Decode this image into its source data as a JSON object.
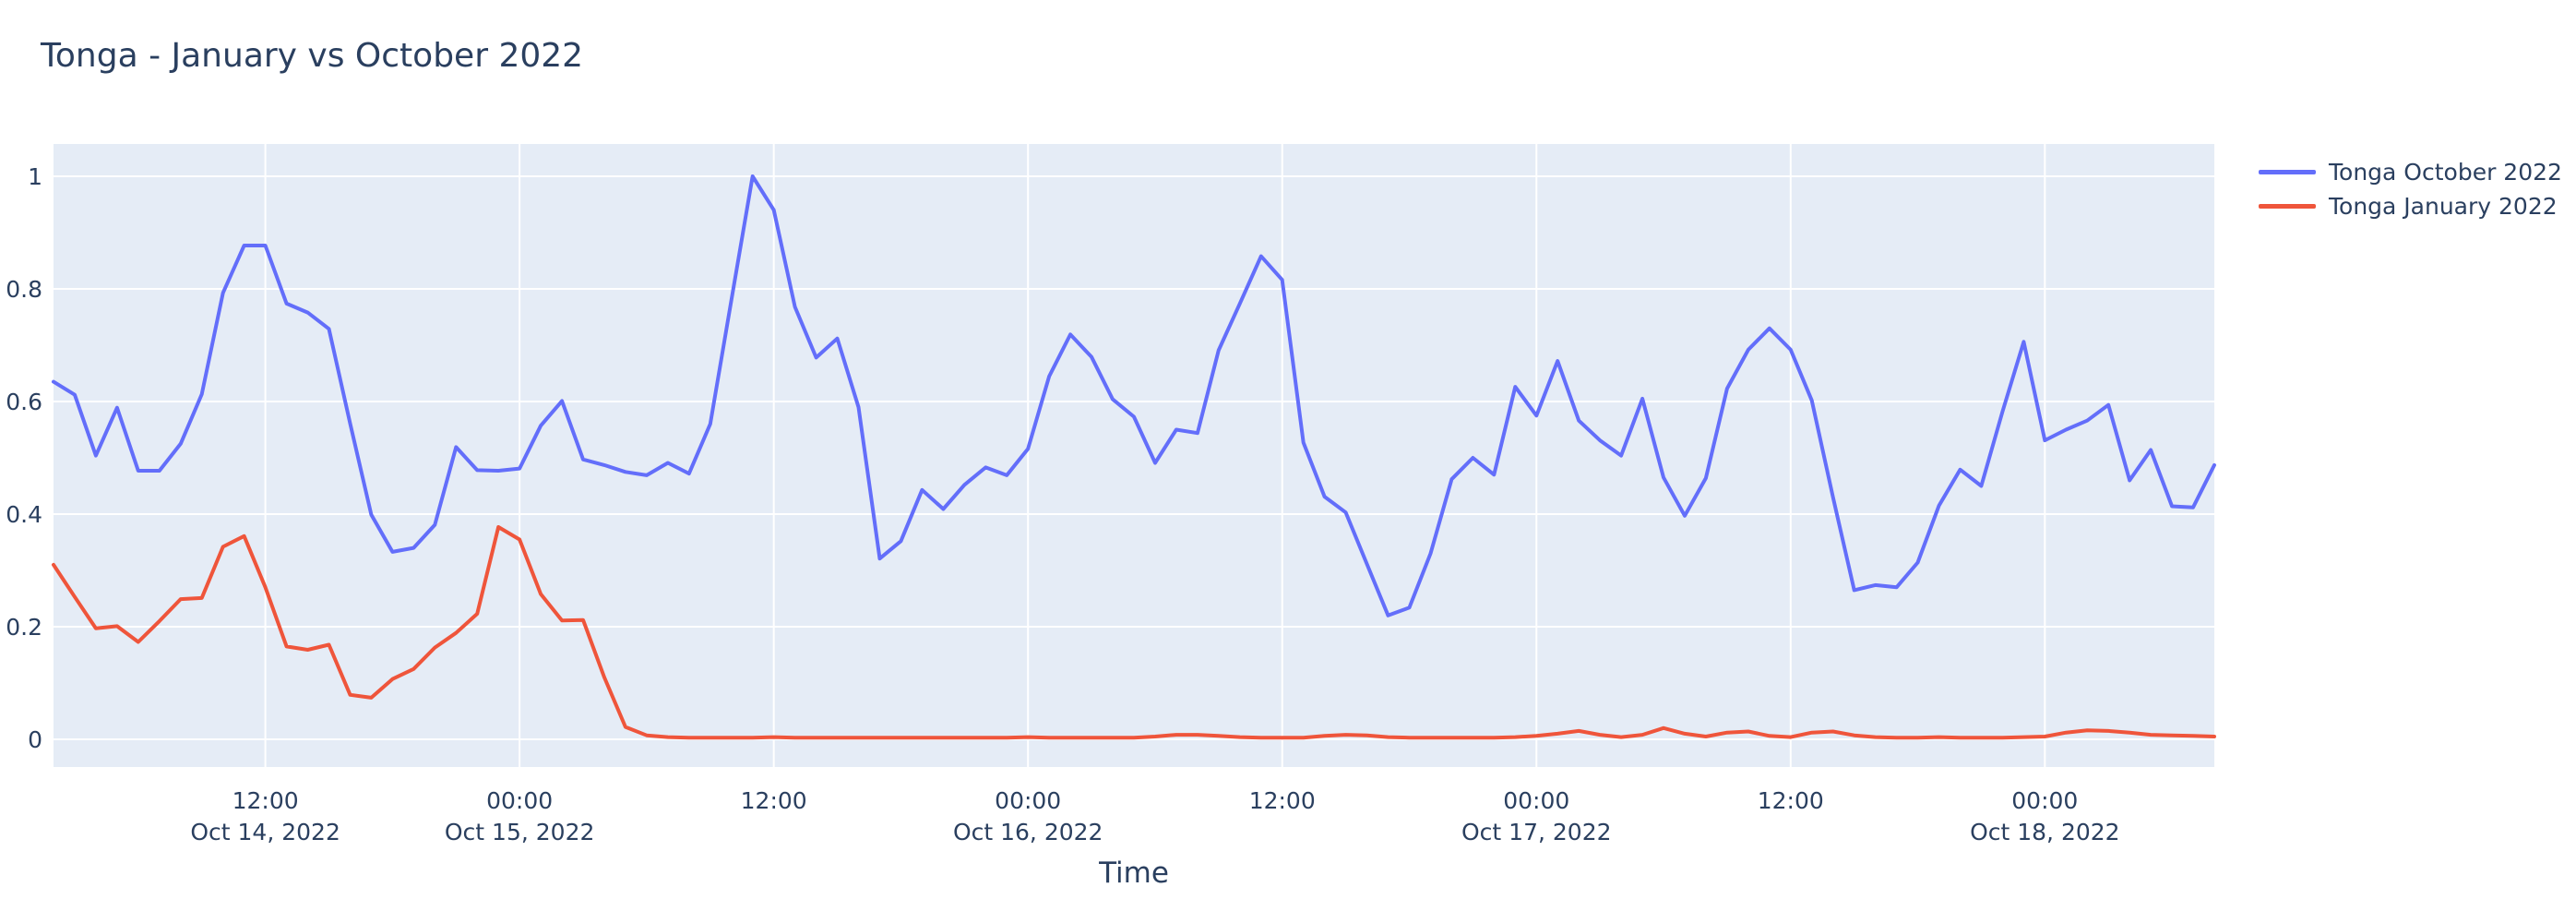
{
  "title": "Tonga - January vs October 2022",
  "colors": {
    "page_background": "#ffffff",
    "plot_background": "#e5ecf6",
    "gridline": "#ffffff",
    "text": "#2a3f5f",
    "october_line": "#636efa",
    "january_line": "#ef553b"
  },
  "chart_data": {
    "type": "line",
    "title": "Tonga - January vs October 2022",
    "xlabel": "Time",
    "ylabel": "",
    "grid": true,
    "legend_position": "right-top",
    "x_start": "2022-10-14 02:00",
    "x_interval_hours": 1,
    "x_total_hours": 102,
    "ylim": [
      -0.049,
      1.057
    ],
    "y_ticks": [
      {
        "value": 0,
        "label": "0"
      },
      {
        "value": 0.2,
        "label": "0.2"
      },
      {
        "value": 0.4,
        "label": "0.4"
      },
      {
        "value": 0.6,
        "label": "0.6"
      },
      {
        "value": 0.8,
        "label": "0.8"
      },
      {
        "value": 1,
        "label": "1"
      }
    ],
    "x_ticks": [
      {
        "hours_offset": 10,
        "time": "12:00",
        "date": "Oct 14, 2022"
      },
      {
        "hours_offset": 22,
        "time": "00:00",
        "date": "Oct 15, 2022"
      },
      {
        "hours_offset": 34,
        "time": "12:00",
        "date": ""
      },
      {
        "hours_offset": 46,
        "time": "00:00",
        "date": "Oct 16, 2022"
      },
      {
        "hours_offset": 58,
        "time": "12:00",
        "date": ""
      },
      {
        "hours_offset": 70,
        "time": "00:00",
        "date": "Oct 17, 2022"
      },
      {
        "hours_offset": 82,
        "time": "12:00",
        "date": ""
      },
      {
        "hours_offset": 94,
        "time": "00:00",
        "date": "Oct 18, 2022"
      }
    ],
    "series": [
      {
        "name": "Tonga October 2022",
        "color": "#636efa",
        "values": [
          0.635,
          0.612,
          0.504,
          0.589,
          0.477,
          0.477,
          0.525,
          0.613,
          0.793,
          0.877,
          0.877,
          0.774,
          0.758,
          0.729,
          0.561,
          0.399,
          0.333,
          0.34,
          0.381,
          0.519,
          0.478,
          0.477,
          0.481,
          0.557,
          0.601,
          0.497,
          0.487,
          0.475,
          0.469,
          0.491,
          0.472,
          0.56,
          0.78,
          1.0,
          0.94,
          0.768,
          0.678,
          0.712,
          0.59,
          0.321,
          0.352,
          0.443,
          0.409,
          0.452,
          0.483,
          0.469,
          0.516,
          0.645,
          0.719,
          0.679,
          0.604,
          0.573,
          0.491,
          0.55,
          0.544,
          0.691,
          0.774,
          0.858,
          0.816,
          0.527,
          0.431,
          0.403,
          0.311,
          0.22,
          0.234,
          0.33,
          0.462,
          0.5,
          0.47,
          0.626,
          0.575,
          0.672,
          0.566,
          0.531,
          0.504,
          0.605,
          0.465,
          0.397,
          0.464,
          0.623,
          0.692,
          0.73,
          0.692,
          0.602,
          0.43,
          0.265,
          0.274,
          0.27,
          0.314,
          0.415,
          0.479,
          0.45,
          0.582,
          0.706,
          0.531,
          0.55,
          0.566,
          0.594,
          0.46,
          0.514,
          0.414,
          0.412,
          0.487
        ]
      },
      {
        "name": "Tonga January 2022",
        "color": "#ef553b",
        "values": [
          0.31,
          0.253,
          0.197,
          0.201,
          0.173,
          0.21,
          0.249,
          0.251,
          0.342,
          0.361,
          0.27,
          0.165,
          0.159,
          0.168,
          0.079,
          0.074,
          0.107,
          0.125,
          0.163,
          0.189,
          0.223,
          0.377,
          0.355,
          0.258,
          0.211,
          0.212,
          0.11,
          0.022,
          0.007,
          0.004,
          0.003,
          0.003,
          0.003,
          0.003,
          0.004,
          0.003,
          0.003,
          0.003,
          0.003,
          0.003,
          0.003,
          0.003,
          0.003,
          0.003,
          0.003,
          0.003,
          0.004,
          0.003,
          0.003,
          0.003,
          0.003,
          0.003,
          0.005,
          0.008,
          0.008,
          0.006,
          0.004,
          0.003,
          0.003,
          0.003,
          0.006,
          0.008,
          0.007,
          0.004,
          0.003,
          0.003,
          0.003,
          0.003,
          0.003,
          0.004,
          0.006,
          0.01,
          0.015,
          0.008,
          0.004,
          0.008,
          0.02,
          0.01,
          0.005,
          0.012,
          0.014,
          0.006,
          0.004,
          0.012,
          0.014,
          0.007,
          0.004,
          0.003,
          0.003,
          0.004,
          0.003,
          0.003,
          0.003,
          0.004,
          0.005,
          0.012,
          0.016,
          0.015,
          0.012,
          0.008,
          0.007,
          0.006,
          0.005
        ]
      }
    ]
  }
}
